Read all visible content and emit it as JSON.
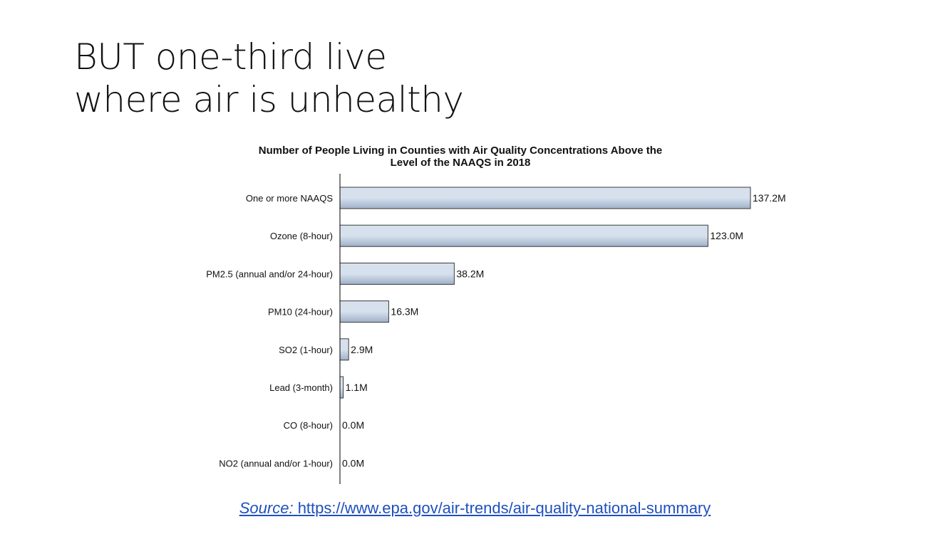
{
  "slide": {
    "title_line1": "BUT one-third live",
    "title_line2": "where air is unhealthy"
  },
  "source": {
    "label": "Source:",
    "url": "https://www.epa.gov/air-trends/air-quality-national-summary"
  },
  "colors": {
    "bar_fill_light": "#d7e1ee",
    "bar_fill_dark": "#9fb0c8",
    "bar_stroke": "#3a3a3a",
    "axis": "#000000",
    "text": "#111111",
    "link": "#1f4fbf"
  },
  "chart_data": {
    "type": "bar",
    "orientation": "horizontal",
    "title_line1": "Number of People Living in Counties with Air Quality Concentrations Above the",
    "title_line2": "Level of the NAAQS in 2018",
    "categories": [
      "One or more NAAQS",
      "Ozone (8-hour)",
      "PM2.5 (annual and/or 24-hour)",
      "PM10 (24-hour)",
      "SO2 (1-hour)",
      "Lead (3-month)",
      "CO (8-hour)",
      "NO2 (annual and/or 1-hour)"
    ],
    "values": [
      137.2,
      123.0,
      38.2,
      16.3,
      2.9,
      1.1,
      0.0,
      0.0
    ],
    "value_labels": [
      "137.2M",
      "123.0M",
      "38.2M",
      "16.3M",
      "2.9M",
      "1.1M",
      "0.0M",
      "0.0M"
    ],
    "unit": "millions of people",
    "xlim": [
      0,
      137.2
    ],
    "xlabel": "",
    "ylabel": "",
    "grid": false,
    "legend": "none"
  }
}
